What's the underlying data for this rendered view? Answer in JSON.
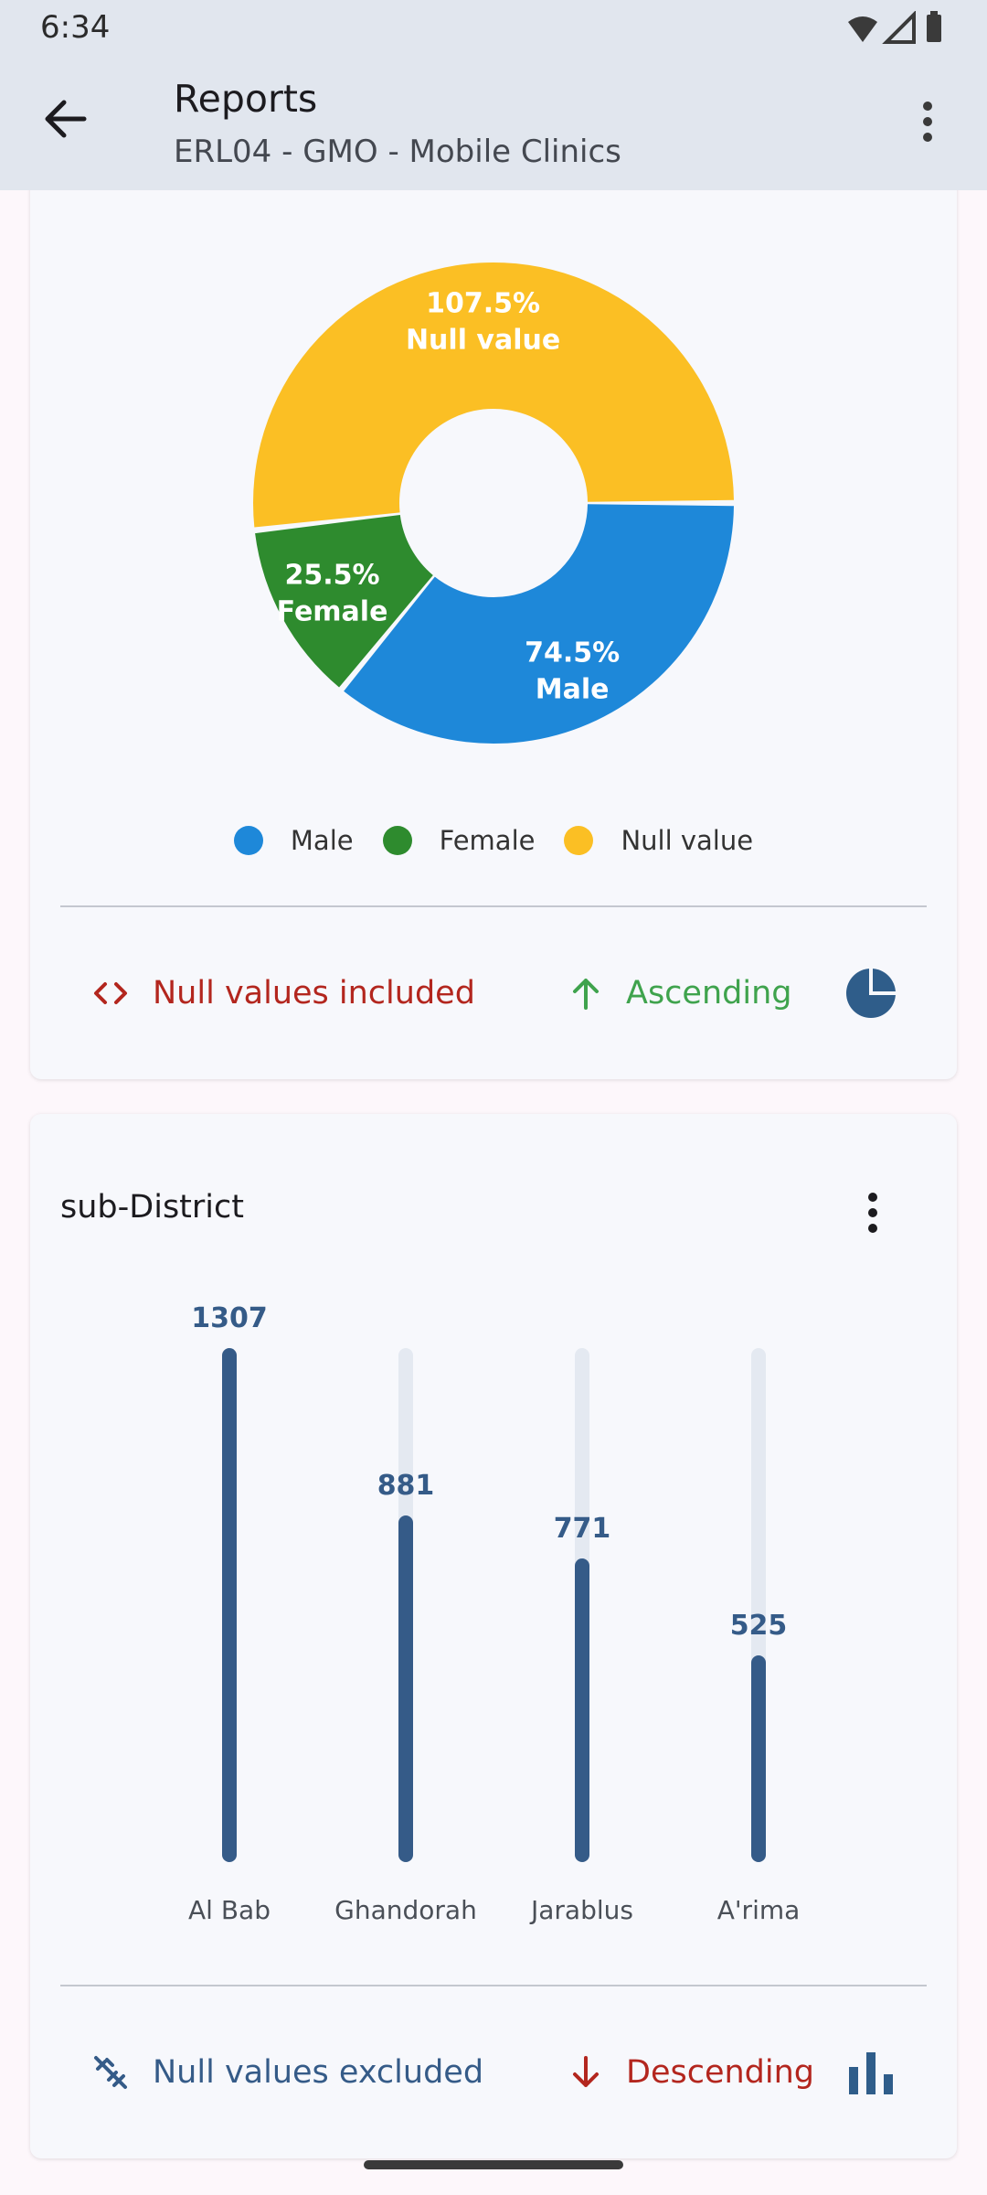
{
  "status_bar": {
    "time": "6:34"
  },
  "header": {
    "title": "Reports",
    "subtitle": "ERL04 - GMO - Mobile Clinics"
  },
  "donut_card": {
    "chart_data": {
      "type": "pie",
      "style": "donut",
      "slices": [
        {
          "name": "Male",
          "label_pct": "74.5%",
          "value": 74.5,
          "color": "#1e88d9"
        },
        {
          "name": "Female",
          "label_pct": "25.5%",
          "value": 25.5,
          "color": "#2e8b2e"
        },
        {
          "name": "Null value",
          "label_pct": "107.5%",
          "value": 107.5,
          "color": "#fbbf24"
        }
      ],
      "legend_position": "bottom"
    },
    "legend": [
      {
        "label": "Male",
        "color": "#1e88d9"
      },
      {
        "label": "Female",
        "color": "#2e8b2e"
      },
      {
        "label": "Null value",
        "color": "#fbbf24"
      }
    ],
    "footer": {
      "null_label": "Null values included",
      "null_icon": "code-brackets-icon",
      "null_color": "#b3261e",
      "sort_label": "Ascending",
      "sort_icon": "arrow-up-icon",
      "sort_color": "#3fa34d",
      "chart_icon": "pie-chart-icon",
      "chart_icon_color": "#2f5d8a"
    }
  },
  "bar_card": {
    "title": "sub-District",
    "chart_data": {
      "type": "bar",
      "orientation": "vertical",
      "categories": [
        "Al Bab",
        "Ghandorah",
        "Jarablus",
        "A'rima"
      ],
      "values": [
        1307,
        881,
        771,
        525
      ],
      "value_labels": [
        "1307",
        "881",
        "771",
        "525"
      ],
      "ylim": [
        0,
        1307
      ],
      "grid": false,
      "bar_color": "#355b88",
      "track_color": "#e4e9f1"
    },
    "footer": {
      "null_label": "Null values excluded",
      "null_icon": "link-off-icon",
      "null_color": "#355b88",
      "sort_label": "Descending",
      "sort_icon": "arrow-down-icon",
      "sort_color": "#b3261e",
      "chart_icon": "bar-chart-icon",
      "chart_icon_color": "#2f5d8a"
    }
  }
}
